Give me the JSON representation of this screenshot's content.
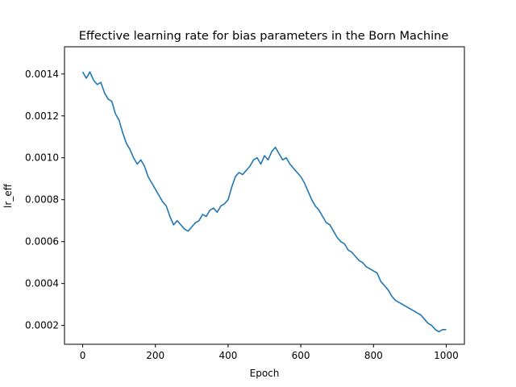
{
  "chart_data": {
    "type": "line",
    "title": "Effective learning rate for bias parameters in the Born Machine",
    "xlabel": "Epoch",
    "ylabel": "lr_eff",
    "xlim": [
      -50,
      1050
    ],
    "ylim": [
      0.00011,
      0.00153
    ],
    "xticks": [
      0,
      200,
      400,
      600,
      800,
      1000
    ],
    "xtick_labels": [
      "0",
      "200",
      "400",
      "600",
      "800",
      "1000"
    ],
    "yticks": [
      0.0002,
      0.0004,
      0.0006,
      0.0008,
      0.001,
      0.0012,
      0.0014
    ],
    "ytick_labels": [
      "0.0002",
      "0.0004",
      "0.0006",
      "0.0008",
      "0.0010",
      "0.0012",
      "0.0014"
    ],
    "grid": false,
    "legend": "none",
    "series": [
      {
        "color": "#1f77b4",
        "x": [
          0,
          10,
          20,
          30,
          40,
          50,
          60,
          70,
          80,
          90,
          100,
          110,
          120,
          130,
          140,
          150,
          160,
          170,
          180,
          190,
          200,
          210,
          220,
          230,
          240,
          250,
          260,
          270,
          280,
          290,
          300,
          310,
          320,
          330,
          340,
          350,
          360,
          370,
          380,
          390,
          400,
          410,
          420,
          430,
          440,
          450,
          460,
          470,
          480,
          490,
          500,
          510,
          520,
          530,
          540,
          550,
          560,
          570,
          580,
          590,
          600,
          610,
          620,
          630,
          640,
          650,
          660,
          670,
          680,
          690,
          700,
          710,
          720,
          730,
          740,
          750,
          760,
          770,
          780,
          790,
          800,
          810,
          820,
          830,
          840,
          850,
          860,
          870,
          880,
          890,
          900,
          910,
          920,
          930,
          940,
          950,
          960,
          970,
          980,
          990,
          1000
        ],
        "values": [
          0.00141,
          0.00138,
          0.00141,
          0.00137,
          0.00135,
          0.00136,
          0.00131,
          0.00128,
          0.00127,
          0.00121,
          0.00118,
          0.00112,
          0.00107,
          0.00104,
          0.001,
          0.00097,
          0.00099,
          0.00096,
          0.00091,
          0.00088,
          0.00085,
          0.00082,
          0.00079,
          0.00077,
          0.00072,
          0.00068,
          0.0007,
          0.00068,
          0.00066,
          0.00065,
          0.00067,
          0.00069,
          0.0007,
          0.00073,
          0.00072,
          0.00075,
          0.00076,
          0.00074,
          0.00077,
          0.00078,
          0.0008,
          0.00086,
          0.00091,
          0.00093,
          0.00092,
          0.00094,
          0.00096,
          0.00099,
          0.001,
          0.00097,
          0.00101,
          0.00099,
          0.00103,
          0.00105,
          0.00102,
          0.00099,
          0.001,
          0.00097,
          0.00095,
          0.00093,
          0.00091,
          0.00088,
          0.00084,
          0.0008,
          0.00077,
          0.00075,
          0.00072,
          0.00069,
          0.00068,
          0.00065,
          0.00062,
          0.0006,
          0.00059,
          0.00056,
          0.00055,
          0.00053,
          0.00051,
          0.0005,
          0.00048,
          0.00047,
          0.00046,
          0.00045,
          0.00041,
          0.00039,
          0.00037,
          0.00034,
          0.00032,
          0.00031,
          0.0003,
          0.00029,
          0.00028,
          0.00027,
          0.00026,
          0.00025,
          0.00023,
          0.00021,
          0.0002,
          0.00018,
          0.00017,
          0.00018,
          0.00018
        ]
      }
    ]
  }
}
